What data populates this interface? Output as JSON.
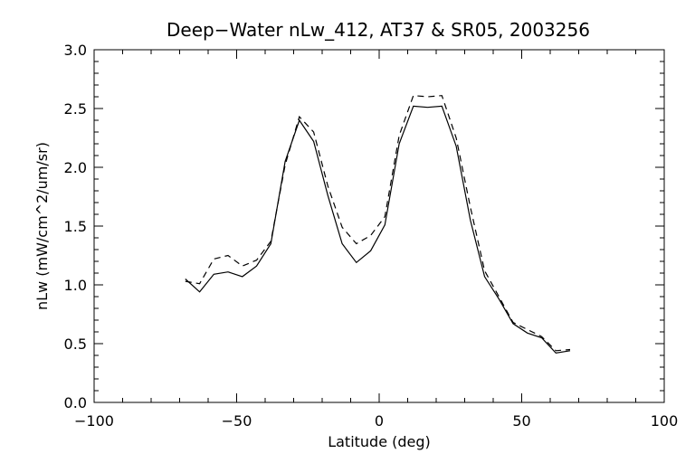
{
  "chart_data": {
    "type": "line",
    "title": "Deep−Water nLw_412, AT37 & SR05, 2003256",
    "xlabel": "Latitude (deg)",
    "ylabel": "nLw (mW/cm^2/um/sr)",
    "xlim": [
      -100,
      100
    ],
    "ylim": [
      0.0,
      3.0
    ],
    "xticks": [
      -100,
      -50,
      0,
      50,
      100
    ],
    "xtick_labels": [
      "−100",
      "−50",
      "0",
      "50",
      "100"
    ],
    "yticks": [
      0.0,
      0.5,
      1.0,
      1.5,
      2.0,
      2.5,
      3.0
    ],
    "ytick_labels": [
      "0.0",
      "0.5",
      "1.0",
      "1.5",
      "2.0",
      "2.5",
      "3.0"
    ],
    "grid": false,
    "legend": "none",
    "series": [
      {
        "style": "solid",
        "color": "#000000",
        "x": [
          -68,
          -63,
          -58,
          -53,
          -48,
          -43,
          -38,
          -33,
          -28,
          -23,
          -18,
          -13,
          -8,
          -3,
          2,
          7,
          12,
          17,
          22,
          27,
          32,
          37,
          42,
          47,
          52,
          57,
          62,
          67
        ],
        "y": [
          1.05,
          0.94,
          1.09,
          1.11,
          1.07,
          1.16,
          1.35,
          2.05,
          2.4,
          2.22,
          1.76,
          1.35,
          1.19,
          1.29,
          1.51,
          2.2,
          2.52,
          2.51,
          2.52,
          2.18,
          1.55,
          1.07,
          0.88,
          0.67,
          0.59,
          0.55,
          0.42,
          0.44
        ]
      },
      {
        "style": "dashed",
        "color": "#000000",
        "x": [
          -68,
          -63,
          -58,
          -53,
          -48,
          -43,
          -38,
          -33,
          -28,
          -23,
          -18,
          -13,
          -8,
          -3,
          2,
          7,
          12,
          17,
          22,
          27,
          32,
          37,
          42,
          47,
          52,
          57,
          62,
          67
        ],
        "y": [
          1.03,
          1.01,
          1.22,
          1.25,
          1.16,
          1.21,
          1.37,
          2.02,
          2.43,
          2.3,
          1.84,
          1.49,
          1.35,
          1.42,
          1.58,
          2.27,
          2.61,
          2.6,
          2.61,
          2.25,
          1.66,
          1.12,
          0.9,
          0.68,
          0.62,
          0.56,
          0.44,
          0.45
        ]
      }
    ]
  }
}
